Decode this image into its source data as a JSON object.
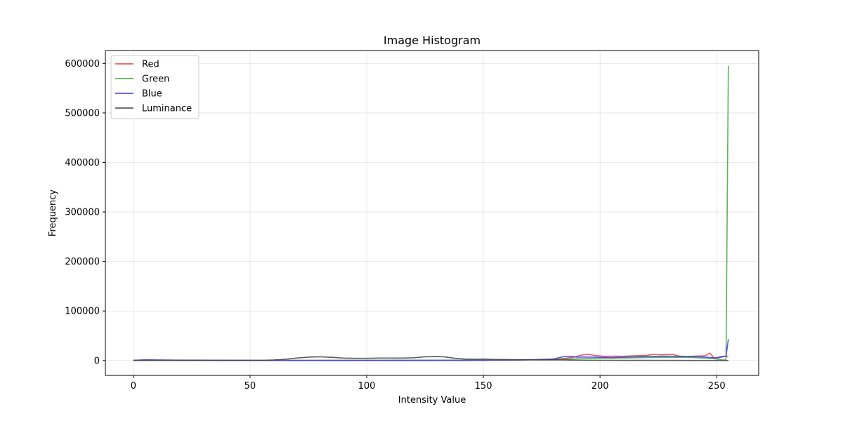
{
  "chart_data": {
    "type": "line",
    "title": "Image Histogram",
    "xlabel": "Intensity Value",
    "ylabel": "Frequency",
    "xlim": [
      -12,
      268
    ],
    "ylim": [
      -30000,
      626000
    ],
    "xticks": [
      0,
      50,
      100,
      150,
      200,
      250
    ],
    "yticks": [
      0,
      100000,
      200000,
      300000,
      400000,
      500000,
      600000
    ],
    "grid": true,
    "legend_position": "top-left",
    "series": [
      {
        "name": "Red",
        "color": "#e8403a",
        "points": [
          [
            0,
            500
          ],
          [
            20,
            300
          ],
          [
            40,
            150
          ],
          [
            60,
            200
          ],
          [
            80,
            300
          ],
          [
            100,
            400
          ],
          [
            120,
            500
          ],
          [
            140,
            600
          ],
          [
            160,
            900
          ],
          [
            175,
            1500
          ],
          [
            182,
            3000
          ],
          [
            188,
            6000
          ],
          [
            192,
            11000
          ],
          [
            195,
            12500
          ],
          [
            198,
            10000
          ],
          [
            202,
            8500
          ],
          [
            206,
            9000
          ],
          [
            210,
            8500
          ],
          [
            215,
            9500
          ],
          [
            220,
            10500
          ],
          [
            223,
            12500
          ],
          [
            226,
            11500
          ],
          [
            228,
            12000
          ],
          [
            231,
            12500
          ],
          [
            234,
            9000
          ],
          [
            237,
            8000
          ],
          [
            241,
            9000
          ],
          [
            245,
            9500
          ],
          [
            247,
            15000
          ],
          [
            249,
            5000
          ],
          [
            252,
            8000
          ],
          [
            254,
            9000
          ],
          [
            255,
            8000
          ]
        ]
      },
      {
        "name": "Green",
        "color": "#3fa63f",
        "points": [
          [
            0,
            300
          ],
          [
            50,
            200
          ],
          [
            100,
            300
          ],
          [
            150,
            800
          ],
          [
            180,
            2000
          ],
          [
            190,
            3500
          ],
          [
            200,
            4500
          ],
          [
            210,
            5000
          ],
          [
            220,
            6000
          ],
          [
            230,
            6500
          ],
          [
            240,
            6000
          ],
          [
            250,
            3000
          ],
          [
            253,
            1000
          ],
          [
            254,
            2000
          ],
          [
            255,
            595000
          ]
        ]
      },
      {
        "name": "Blue",
        "color": "#3a3ae8",
        "points": [
          [
            0,
            500
          ],
          [
            5,
            1500
          ],
          [
            20,
            800
          ],
          [
            40,
            300
          ],
          [
            60,
            200
          ],
          [
            100,
            200
          ],
          [
            150,
            500
          ],
          [
            170,
            1500
          ],
          [
            180,
            3000
          ],
          [
            184,
            7500
          ],
          [
            187,
            8500
          ],
          [
            190,
            7000
          ],
          [
            195,
            7000
          ],
          [
            200,
            6500
          ],
          [
            205,
            6000
          ],
          [
            210,
            7000
          ],
          [
            215,
            7500
          ],
          [
            220,
            8000
          ],
          [
            225,
            8500
          ],
          [
            230,
            9000
          ],
          [
            235,
            8000
          ],
          [
            240,
            8000
          ],
          [
            245,
            7000
          ],
          [
            250,
            5000
          ],
          [
            253,
            8000
          ],
          [
            254,
            9000
          ],
          [
            255,
            43000
          ]
        ]
      },
      {
        "name": "Luminance",
        "color": "#404040",
        "points": [
          [
            0,
            300
          ],
          [
            20,
            600
          ],
          [
            40,
            400
          ],
          [
            55,
            500
          ],
          [
            60,
            1000
          ],
          [
            65,
            2500
          ],
          [
            70,
            5000
          ],
          [
            75,
            7000
          ],
          [
            80,
            7500
          ],
          [
            85,
            6500
          ],
          [
            90,
            5000
          ],
          [
            95,
            4500
          ],
          [
            100,
            4500
          ],
          [
            105,
            5000
          ],
          [
            110,
            5000
          ],
          [
            115,
            5000
          ],
          [
            120,
            5500
          ],
          [
            125,
            7500
          ],
          [
            130,
            8000
          ],
          [
            133,
            7500
          ],
          [
            138,
            4500
          ],
          [
            142,
            3000
          ],
          [
            146,
            2500
          ],
          [
            150,
            3000
          ],
          [
            155,
            2000
          ],
          [
            160,
            2000
          ],
          [
            165,
            1500
          ],
          [
            170,
            1800
          ],
          [
            175,
            1200
          ],
          [
            180,
            1500
          ],
          [
            185,
            1000
          ],
          [
            190,
            800
          ],
          [
            195,
            600
          ],
          [
            200,
            500
          ],
          [
            220,
            300
          ],
          [
            240,
            200
          ],
          [
            255,
            100
          ]
        ]
      }
    ]
  }
}
